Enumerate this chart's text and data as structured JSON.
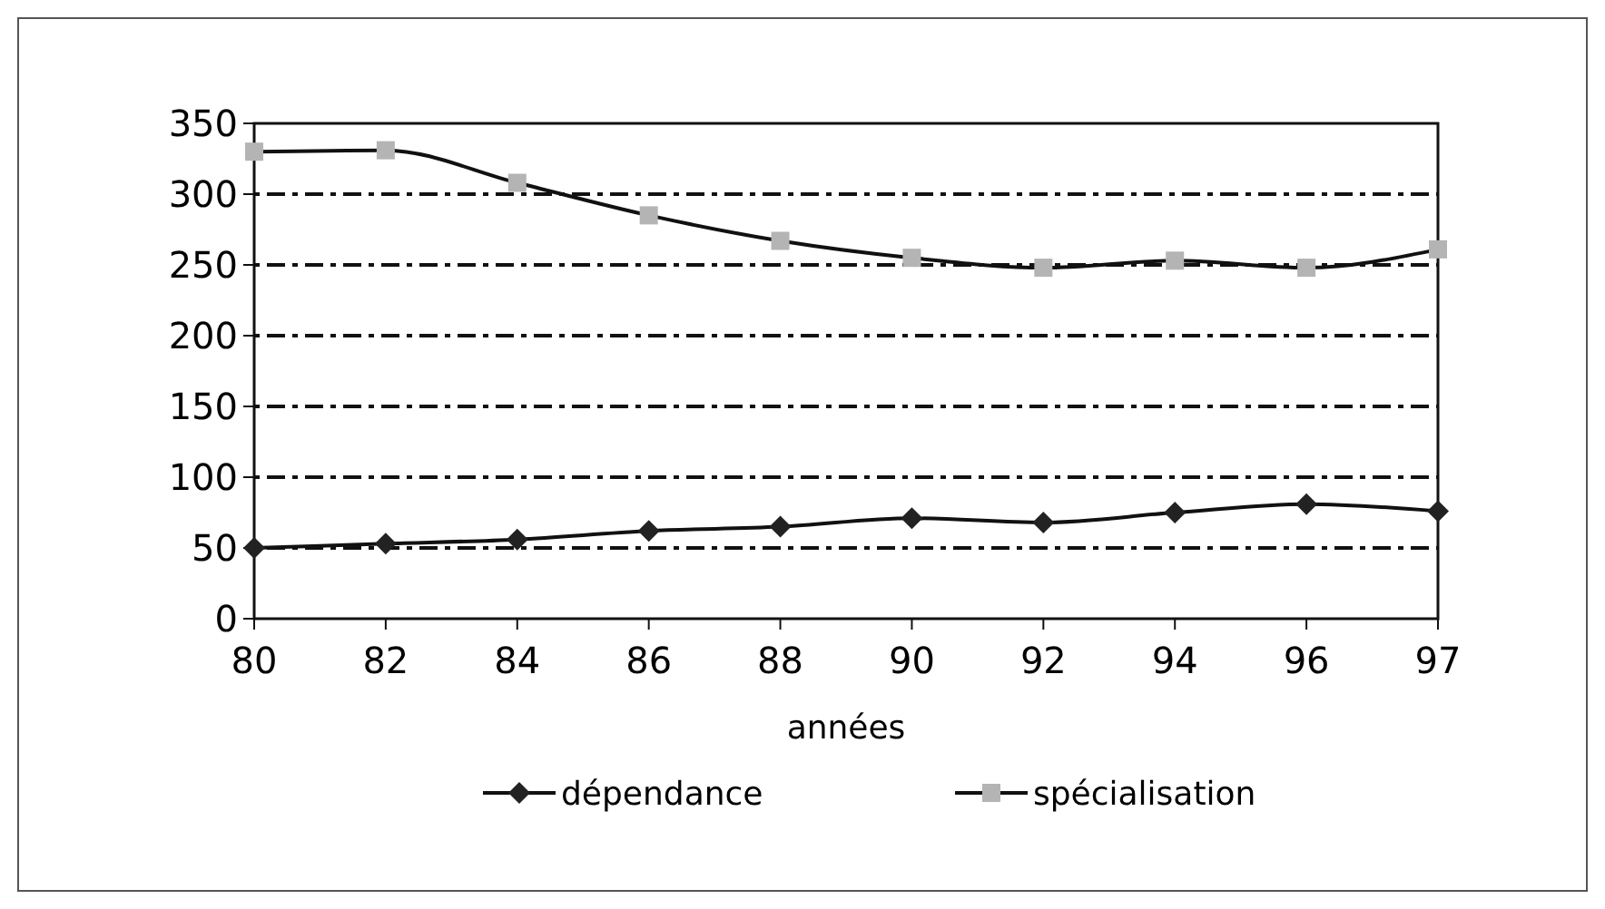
{
  "chart_data": {
    "type": "line",
    "xlabel": "années",
    "categories": [
      "80",
      "82",
      "84",
      "86",
      "88",
      "90",
      "92",
      "94",
      "96",
      "97"
    ],
    "series": [
      {
        "name": "dépendance",
        "color": "#222222",
        "marker": "diamond",
        "values": [
          50,
          53,
          56,
          62,
          65,
          71,
          68,
          75,
          81,
          76
        ]
      },
      {
        "name": "spécialisation",
        "color": "#b4b4b4",
        "marker": "square",
        "values": [
          330,
          331,
          308,
          285,
          267,
          255,
          248,
          253,
          248,
          261
        ]
      }
    ],
    "ylim": [
      0,
      350
    ],
    "yticks": [
      0,
      50,
      100,
      150,
      200,
      250,
      300,
      350
    ],
    "grid": "y",
    "legend": "bottom",
    "line_style": "solid"
  }
}
